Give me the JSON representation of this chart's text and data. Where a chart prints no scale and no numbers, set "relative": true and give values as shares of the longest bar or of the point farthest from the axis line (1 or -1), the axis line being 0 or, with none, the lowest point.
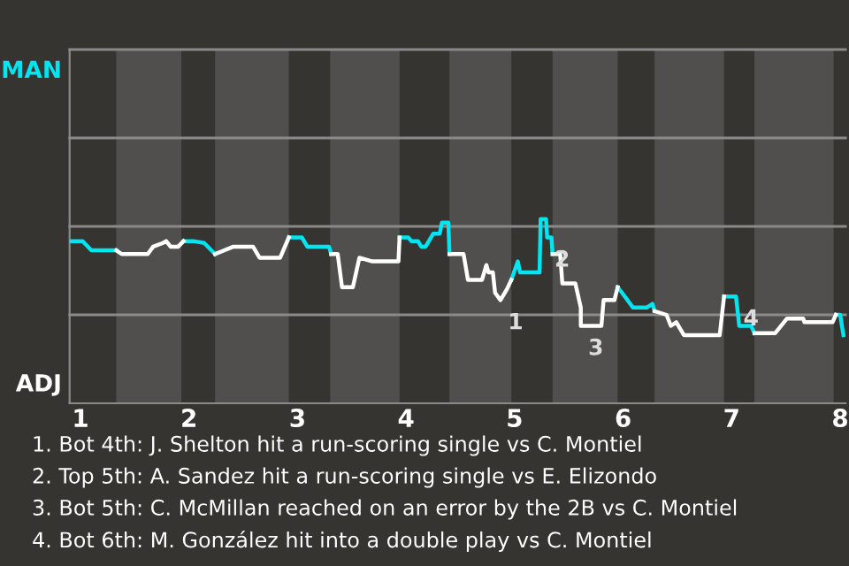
{
  "chart_data": {
    "type": "line",
    "relative": true,
    "x": [
      0.9,
      1.02,
      1.1,
      1.33,
      1.38,
      1.62,
      1.67,
      1.76,
      1.79,
      1.83,
      1.9,
      1.95,
      2.04,
      2.14,
      2.24,
      2.41,
      2.59,
      2.65,
      2.84,
      2.92,
      3.04,
      3.09,
      3.29,
      3.31,
      3.37,
      3.41,
      3.51,
      3.57,
      3.69,
      3.93,
      3.94,
      4.02,
      4.05,
      4.11,
      4.14,
      4.18,
      4.25,
      4.31,
      4.33,
      4.39,
      4.4,
      4.53,
      4.57,
      4.7,
      4.74,
      4.76,
      4.8,
      4.82,
      4.87,
      4.93,
      4.97,
      5.03,
      5.05,
      5.23,
      5.24,
      5.29,
      5.3,
      5.34,
      5.35,
      5.42,
      5.44,
      5.56,
      5.61,
      5.61,
      5.8,
      5.82,
      5.92,
      5.95,
      5.99,
      6.09,
      6.22,
      6.27,
      6.29,
      6.4,
      6.44,
      6.49,
      6.56,
      6.89,
      6.93,
      7.04,
      7.07,
      7.18,
      7.21,
      7.4,
      7.51,
      7.66,
      7.67,
      7.93,
      7.96,
      8.0,
      8.03
    ],
    "series": [
      {
        "name": "MAN",
        "color": "#00e5f0",
        "values": [
          0.88,
          0.88,
          0.83,
          0.83,
          null,
          null,
          null,
          null,
          null,
          null,
          null,
          0.88,
          0.88,
          0.87,
          0.81,
          null,
          null,
          null,
          null,
          0.9,
          0.9,
          0.85,
          0.85,
          0.81,
          null,
          null,
          null,
          null,
          null,
          null,
          0.9,
          0.9,
          0.88,
          0.88,
          0.85,
          0.85,
          0.92,
          0.92,
          0.98,
          0.98,
          0.81,
          null,
          null,
          null,
          null,
          null,
          null,
          null,
          null,
          null,
          0.67,
          0.77,
          0.71,
          0.71,
          1,
          1,
          0.9,
          0.9,
          0.81,
          null,
          null,
          null,
          null,
          null,
          null,
          null,
          null,
          0.63,
          0.6,
          0.52,
          0.52,
          0.54,
          0.5,
          null,
          null,
          null,
          null,
          null,
          0.58,
          0.58,
          0.42,
          0.42,
          0.38,
          null,
          null,
          null,
          null,
          null,
          0.48,
          0.48,
          0.37
        ]
      },
      {
        "name": "ADJ",
        "color": "#ffffff",
        "values": [
          null,
          null,
          null,
          0.83,
          0.81,
          0.81,
          0.85,
          0.87,
          0.88,
          0.85,
          0.85,
          0.88,
          null,
          null,
          0.81,
          0.85,
          0.85,
          0.79,
          0.79,
          0.9,
          null,
          null,
          null,
          0.81,
          0.81,
          0.63,
          0.63,
          0.79,
          0.77,
          0.77,
          0.9,
          null,
          null,
          null,
          null,
          null,
          null,
          null,
          null,
          null,
          0.81,
          0.81,
          0.67,
          0.67,
          0.75,
          0.71,
          0.71,
          0.6,
          0.56,
          0.62,
          0.67,
          null,
          null,
          null,
          null,
          null,
          null,
          null,
          0.81,
          0.81,
          0.65,
          0.65,
          0.52,
          0.42,
          0.42,
          0.56,
          0.56,
          0.63,
          null,
          null,
          null,
          null,
          0.5,
          0.48,
          0.42,
          0.44,
          0.37,
          0.37,
          0.58,
          null,
          null,
          null,
          0.38,
          0.38,
          0.46,
          0.46,
          0.44,
          0.44,
          0.48,
          null,
          null
        ]
      }
    ],
    "xlim": [
      0.9,
      8.05
    ],
    "xticks": [
      1,
      2,
      3,
      4,
      5,
      6,
      7,
      8
    ],
    "ref_lines": [
      {
        "axis": "y",
        "value": 0.48,
        "color": "#8a8a8a"
      },
      {
        "axis": "y",
        "value": 0.96,
        "color": "#8a8a8a"
      },
      {
        "axis": "y",
        "value": 1.44,
        "color": "#8a8a8a"
      },
      {
        "axis": "y",
        "value": 1.92,
        "color": "#8a8a8a"
      }
    ],
    "line_style": "solid",
    "bands": [
      {
        "axis": "x",
        "from": 1.33,
        "to": 1.93,
        "color": "#504f4d"
      },
      {
        "axis": "x",
        "from": 2.24,
        "to": 2.92,
        "color": "#504f4d"
      },
      {
        "axis": "x",
        "from": 3.3,
        "to": 3.94,
        "color": "#504f4d"
      },
      {
        "axis": "x",
        "from": 4.4,
        "to": 4.97,
        "color": "#504f4d"
      },
      {
        "axis": "x",
        "from": 5.35,
        "to": 5.95,
        "color": "#504f4d"
      },
      {
        "axis": "x",
        "from": 6.29,
        "to": 6.93,
        "color": "#504f4d"
      },
      {
        "axis": "x",
        "from": 7.21,
        "to": 7.94,
        "color": "#504f4d"
      }
    ],
    "annotations": [
      {
        "text": "1",
        "x": 4.87,
        "y": 0.56
      },
      {
        "text": "2",
        "x": 5.3,
        "y": 0.9
      },
      {
        "text": "3",
        "x": 5.61,
        "y": 0.42
      },
      {
        "text": "4",
        "x": 7.04,
        "y": 0.58
      },
      "1. Bot 4th: J. Shelton hit a run-scoring single vs C. Montiel",
      "2. Top 5th: A. Sandez hit a run-scoring single vs E. Elizondo",
      "3. Bot 5th: C. McMillan reached on an error by the 2B vs C. Montiel",
      "4. Bot 6th: M. González hit into a double play vs C. Montiel"
    ]
  }
}
